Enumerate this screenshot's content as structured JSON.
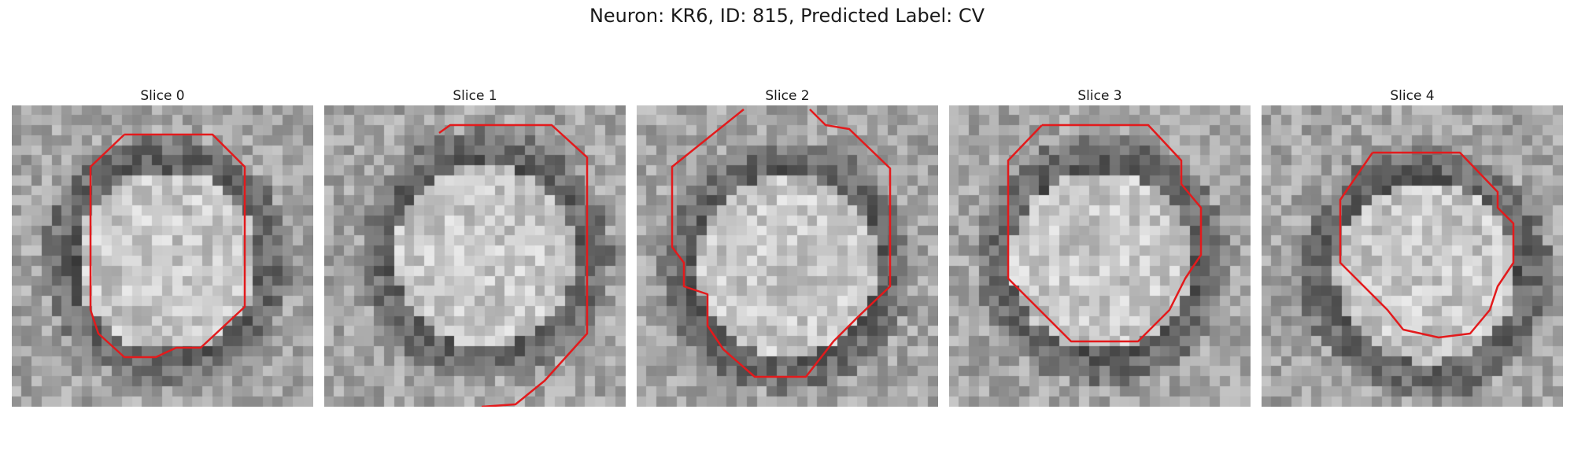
{
  "figure": {
    "title": "Neuron: KR6, ID: 815, Predicted Label: CV",
    "contour_color": "#e31a1c",
    "colormap": "gray"
  },
  "panels": [
    {
      "title": "Slice 0"
    },
    {
      "title": "Slice 1"
    },
    {
      "title": "Slice 2"
    },
    {
      "title": "Slice 3"
    },
    {
      "title": "Slice 4"
    }
  ]
}
